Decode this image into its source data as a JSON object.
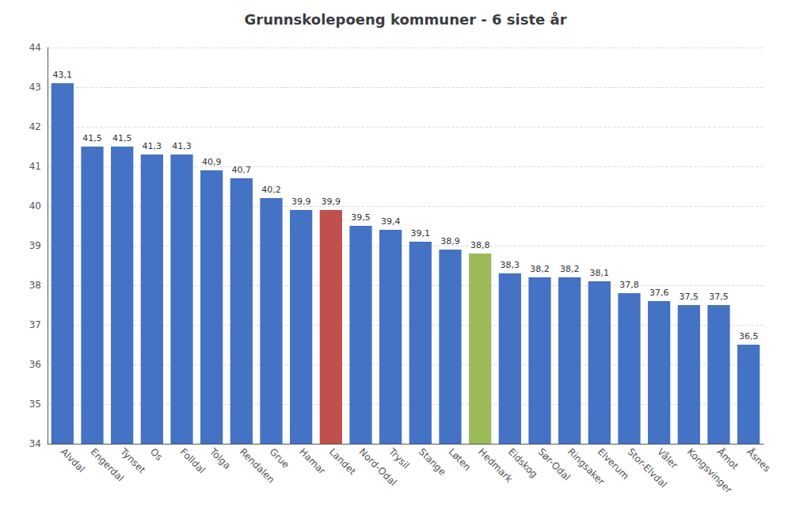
{
  "chart_data": {
    "type": "bar",
    "title": "Grunnskolepoeng kommuner - 6 siste år",
    "categories": [
      "Alvdal",
      "Engerdal",
      "Tynset",
      "Os",
      "Folldal",
      "Tolga",
      "Rendalen",
      "Grue",
      "Hamar",
      "Landet",
      "Nord-Odal",
      "Trysil",
      "Stange",
      "Løten",
      "Hedmark",
      "Eidskog",
      "Sør-Odal",
      "Ringsaker",
      "Elverum",
      "Stor-Elvdal",
      "Våler",
      "Kongsvinger",
      "Åmot",
      "Åsnes"
    ],
    "values": [
      43.1,
      41.5,
      41.5,
      41.3,
      41.3,
      40.9,
      40.7,
      40.2,
      39.9,
      39.9,
      39.5,
      39.4,
      39.1,
      38.9,
      38.8,
      38.3,
      38.2,
      38.2,
      38.1,
      37.8,
      37.6,
      37.5,
      37.5,
      36.5
    ],
    "value_labels": [
      "43,1",
      "41,5",
      "41,5",
      "41,3",
      "41,3",
      "40,9",
      "40,7",
      "40,2",
      "39,9",
      "39,9",
      "39,5",
      "39,4",
      "39,1",
      "38,9",
      "38,8",
      "38,3",
      "38,2",
      "38,2",
      "38,1",
      "37,8",
      "37,6",
      "37,5",
      "37,5",
      "36,5"
    ],
    "colors": [
      "#4472C4",
      "#4472C4",
      "#4472C4",
      "#4472C4",
      "#4472C4",
      "#4472C4",
      "#4472C4",
      "#4472C4",
      "#4472C4",
      "#C0504D",
      "#4472C4",
      "#4472C4",
      "#4472C4",
      "#4472C4",
      "#9BBB59",
      "#4472C4",
      "#4472C4",
      "#4472C4",
      "#4472C4",
      "#4472C4",
      "#4472C4",
      "#4472C4",
      "#4472C4",
      "#4472C4"
    ],
    "ylim": [
      34,
      44
    ],
    "yticks": [
      34,
      35,
      36,
      37,
      38,
      39,
      40,
      41,
      42,
      43,
      44
    ],
    "grid": true,
    "data_labels": true
  }
}
